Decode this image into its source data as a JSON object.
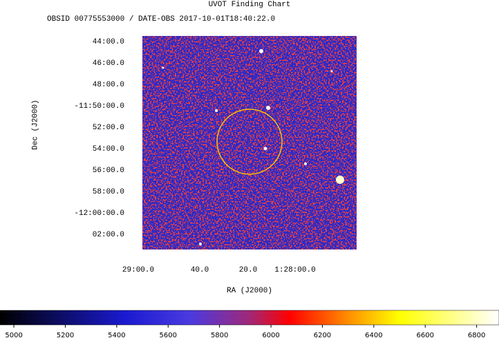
{
  "title": "UVOT Finding Chart",
  "subtitle": "OBSID 00775553000 / DATE-OBS 2017-10-01T18:40:22.0",
  "x_label": "RA (J2000)",
  "y_label": "Dec (J2000)",
  "ra_ticks": [
    "29:00.0",
    "40.0",
    "20.0",
    "1:28:00.0"
  ],
  "dec_ticks": [
    "44:00.0",
    "46:00.0",
    "48:00.0",
    "-11:50:00.0",
    "52:00.0",
    "54:00.0",
    "56:00.0",
    "58:00.0",
    "-12:00:00.0",
    "02:00.0"
  ],
  "colorbar": {
    "lim": [
      4946,
      6887
    ],
    "ticks": [
      5000,
      5200,
      5400,
      5600,
      5800,
      6000,
      6200,
      6400,
      6600,
      6800
    ]
  }
}
